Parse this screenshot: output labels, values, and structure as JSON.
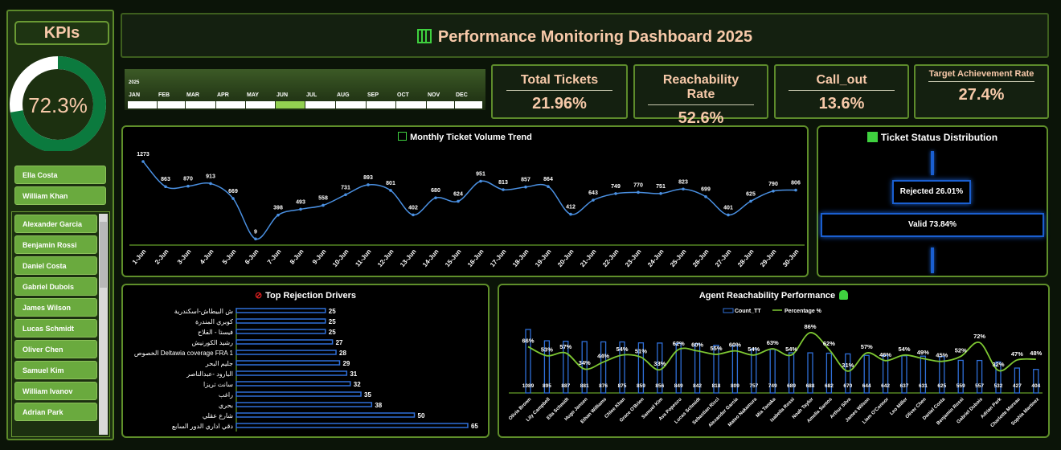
{
  "sidebar": {
    "title": "KPIs",
    "gauge_value": "72.3%",
    "gauge_fraction": 0.723,
    "selected_agents": [
      "Ella Costa",
      "William Khan"
    ],
    "agent_list": [
      "Alexander Garcia",
      "Benjamin Rossi",
      "Daniel Costa",
      "Gabriel Dubois",
      "James Wilson",
      "Lucas Schmidt",
      "Oliver Chen",
      "Samuel Kim",
      "William Ivanov",
      "Adrian Park"
    ]
  },
  "header": {
    "title": "Performance Monitoring Dashboard 2025",
    "icon": "bar-chart-icon"
  },
  "slicer": {
    "year": "2025",
    "months": [
      "JAN",
      "FEB",
      "MAR",
      "APR",
      "MAY",
      "JUN",
      "JUL",
      "AUG",
      "SEP",
      "OCT",
      "NOV",
      "DEC"
    ],
    "selected": "JUN",
    "selected_color": "#92d050"
  },
  "cards": [
    {
      "label": "Total Tickets",
      "value": "21.96%"
    },
    {
      "label": "Reachability Rate",
      "value": "52.6%"
    },
    {
      "label": "Call_out",
      "value": "13.6%"
    },
    {
      "label": "Target Achievement Rate",
      "value": "27.4%"
    }
  ],
  "status": {
    "title": "Ticket Status Distribution",
    "rejected": "Rejected 26.01%",
    "valid": "Valid 73.84%"
  },
  "chart_data": [
    {
      "type": "line",
      "title": "Monthly Ticket Volume Trend",
      "categories": [
        "1-Jun",
        "2-Jun",
        "3-Jun",
        "4-Jun",
        "5-Jun",
        "6-Jun",
        "7-Jun",
        "8-Jun",
        "9-Jun",
        "10-Jun",
        "11-Jun",
        "12-Jun",
        "13-Jun",
        "14-Jun",
        "15-Jun",
        "16-Jun",
        "17-Jun",
        "18-Jun",
        "19-Jun",
        "20-Jun",
        "21-Jun",
        "22-Jun",
        "23-Jun",
        "24-Jun",
        "25-Jun",
        "26-Jun",
        "27-Jun",
        "28-Jun",
        "29-Jun",
        "30-Jun"
      ],
      "values": [
        1273,
        863,
        870,
        913,
        669,
        9,
        398,
        493,
        558,
        731,
        893,
        801,
        402,
        680,
        624,
        951,
        813,
        857,
        864,
        412,
        643,
        749,
        770,
        751,
        823,
        699,
        401,
        625,
        790,
        806
      ],
      "color": "#4a90e2"
    },
    {
      "type": "bar",
      "orientation": "horizontal",
      "title": "Top Rejection Drivers",
      "categories": [
        "ش البيطاش-اسكندرية",
        "كوبري المندرة",
        "فيستا - الفلاح",
        "رشيد  الكورنيش",
        "الخصوص Deltawia coverage FRA 1",
        "جليم البحر",
        "البارود -عبدالناصر",
        "سانت تريزا",
        "راغب",
        "بحري",
        "شارع عقلي",
        "دقي اداري الدور السابع"
      ],
      "values": [
        25,
        25,
        25,
        27,
        28,
        29,
        31,
        32,
        35,
        38,
        50,
        65
      ],
      "color": "#2f6fd8"
    },
    {
      "type": "bar+line",
      "title": "Agent Reachability Performance",
      "categories": [
        "Olivia Brown",
        "Lily Campbell",
        "Ella Schmidt",
        "Hugo Jansen",
        "Ethan Williams",
        "Chloe Khan",
        "Grace O'Brien",
        "Samuel Kim",
        "Ava Popescu",
        "Lucas Schmidt",
        "Sebastian Ricci",
        "Alexander Garcia",
        "Mateo Nakamura",
        "Mia Tanaka",
        "Isabella Rossi",
        "Noah Taylor",
        "Amelia Santos",
        "Arthur Silva",
        "James Wilson",
        "Liam O'Connor",
        "Leo Miller",
        "Oliver Chen",
        "Daniel Costa",
        "Benjamin Rossi",
        "Gabriel Dubois",
        "Adrian Park",
        "Charlotte Moreau",
        "Sophia Martinez"
      ],
      "series": [
        {
          "name": "Count_TT",
          "type": "bar",
          "values": [
            1089,
            895,
            887,
            881,
            876,
            875,
            859,
            856,
            849,
            842,
            818,
            809,
            757,
            749,
            689,
            688,
            682,
            670,
            644,
            642,
            637,
            631,
            625,
            559,
            557,
            532,
            427,
            404
          ],
          "color": "#2f6fd8"
        },
        {
          "name": "Percentage %",
          "type": "line",
          "values": [
            66,
            53,
            57,
            34,
            44,
            54,
            51,
            33,
            62,
            60,
            55,
            60,
            54,
            63,
            54,
            86,
            62,
            31,
            57,
            46,
            54,
            49,
            45,
            52,
            72,
            32,
            47,
            48
          ],
          "color": "#7ec832"
        }
      ],
      "legend": "top"
    }
  ]
}
